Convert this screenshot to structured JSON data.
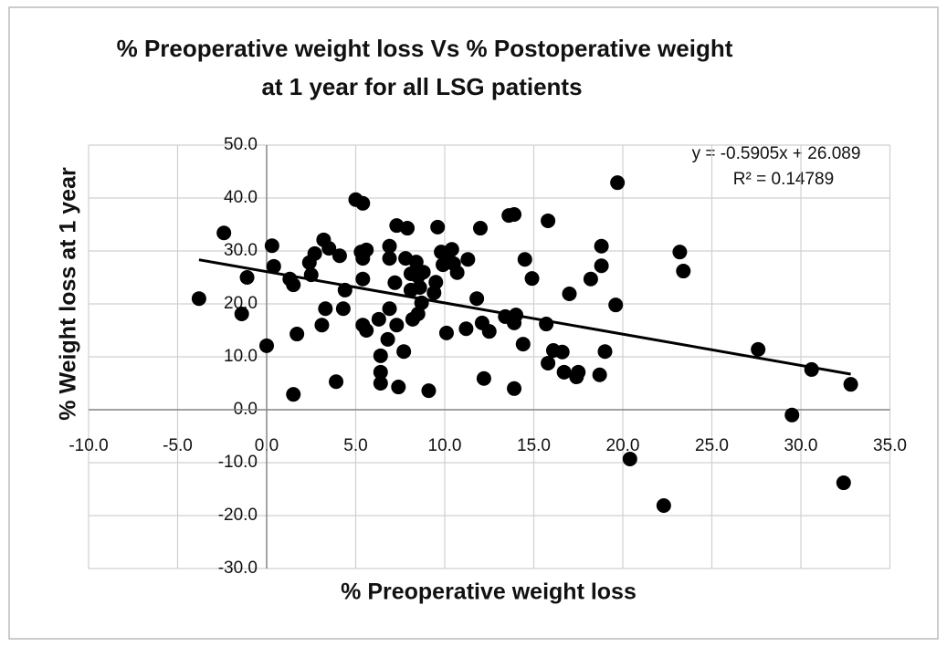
{
  "chart_data": {
    "type": "scatter",
    "title": [
      "% Preoperative weight loss Vs % Postoperative weight",
      "at 1 year for all LSG patients"
    ],
    "x_label": "% Preoperative weight loss",
    "y_label": "% Weight loss at 1 year",
    "trendline": {
      "equation": "y = -0.5905x + 26.089",
      "r2": "R² = 0.14789",
      "slope": -0.5905,
      "intercept": 26.089
    },
    "color": "#000000",
    "grid": true,
    "xlim": [
      -10,
      35
    ],
    "ylim": [
      -30,
      50
    ],
    "xticks": [
      {
        "value": -10,
        "label": "-10.0"
      },
      {
        "value": -5,
        "label": "-5.0"
      },
      {
        "value": 0,
        "label": "0.0"
      },
      {
        "value": 5,
        "label": "5.0"
      },
      {
        "value": 10,
        "label": "10.0"
      },
      {
        "value": 15,
        "label": "15.0"
      },
      {
        "value": 20,
        "label": "20.0"
      },
      {
        "value": 25,
        "label": "25.0"
      },
      {
        "value": 30,
        "label": "30.0"
      },
      {
        "value": 35,
        "label": "35.0"
      }
    ],
    "yticks": [
      {
        "value": -30,
        "label": "-30.0"
      },
      {
        "value": -20,
        "label": "-20.0"
      },
      {
        "value": -10,
        "label": "-10.0"
      },
      {
        "value": 0,
        "label": "0.0"
      },
      {
        "value": 10,
        "label": "10.0"
      },
      {
        "value": 20,
        "label": "20.0"
      },
      {
        "value": 30,
        "label": "30.0"
      },
      {
        "value": 40,
        "label": "40.0"
      },
      {
        "value": 50,
        "label": "50.0"
      }
    ],
    "x": [
      -3.8,
      -2.4,
      -1.4,
      -1.1,
      0.0,
      0.3,
      0.4,
      1.3,
      1.5,
      1.5,
      1.7,
      2.4,
      2.5,
      2.7,
      3.1,
      3.2,
      3.3,
      3.5,
      3.9,
      4.1,
      4.3,
      4.4,
      5.0,
      5.4,
      5.3,
      5.4,
      5.4,
      5.4,
      5.6,
      5.6,
      6.3,
      6.4,
      6.4,
      6.4,
      6.8,
      6.9,
      6.9,
      6.9,
      7.2,
      7.3,
      7.4,
      7.3,
      7.7,
      7.9,
      7.8,
      8.1,
      8.1,
      8.2,
      8.4,
      8.5,
      8.5,
      8.6,
      8.7,
      8.8,
      9.1,
      9.4,
      9.5,
      9.6,
      9.8,
      9.9,
      10.1,
      10.2,
      10.4,
      10.5,
      10.7,
      11.2,
      11.3,
      11.8,
      12.0,
      12.1,
      12.2,
      12.5,
      13.4,
      13.6,
      13.9,
      13.9,
      13.9,
      14.0,
      14.4,
      14.5,
      14.9,
      15.7,
      15.8,
      15.8,
      16.1,
      16.6,
      16.7,
      17.0,
      17.4,
      17.5,
      18.2,
      18.7,
      18.8,
      18.8,
      19.0,
      19.7,
      19.6,
      20.4,
      22.3,
      23.2,
      23.4,
      27.6,
      29.5,
      30.6,
      32.4,
      32.8
    ],
    "values": [
      21.0,
      33.4,
      18.1,
      25.0,
      12.1,
      31.0,
      27.1,
      24.7,
      23.6,
      2.9,
      14.3,
      27.8,
      25.5,
      29.5,
      16.0,
      32.1,
      19.1,
      30.5,
      5.3,
      29.1,
      19.1,
      22.6,
      39.7,
      39.0,
      29.8,
      28.6,
      24.7,
      16.0,
      15.0,
      30.2,
      17.1,
      10.2,
      7.1,
      5.0,
      13.3,
      19.1,
      30.9,
      28.6,
      24.0,
      16.0,
      4.3,
      34.8,
      11.0,
      34.3,
      28.6,
      25.7,
      22.6,
      17.1,
      27.9,
      25.2,
      18.1,
      23.1,
      20.2,
      26.0,
      3.6,
      22.1,
      24.1,
      34.5,
      29.8,
      27.4,
      14.5,
      29.5,
      30.3,
      27.6,
      25.9,
      15.3,
      28.4,
      21.0,
      34.3,
      16.4,
      5.9,
      14.8,
      17.6,
      36.7,
      36.9,
      16.4,
      4.0,
      17.9,
      12.4,
      28.4,
      24.8,
      16.2,
      35.7,
      8.8,
      11.2,
      10.9,
      7.1,
      21.9,
      6.2,
      7.1,
      24.7,
      6.6,
      27.2,
      30.9,
      11.0,
      42.9,
      19.8,
      -9.3,
      -18.1,
      29.8,
      26.2,
      11.4,
      -1.0,
      7.6,
      -13.8,
      4.8
    ]
  }
}
